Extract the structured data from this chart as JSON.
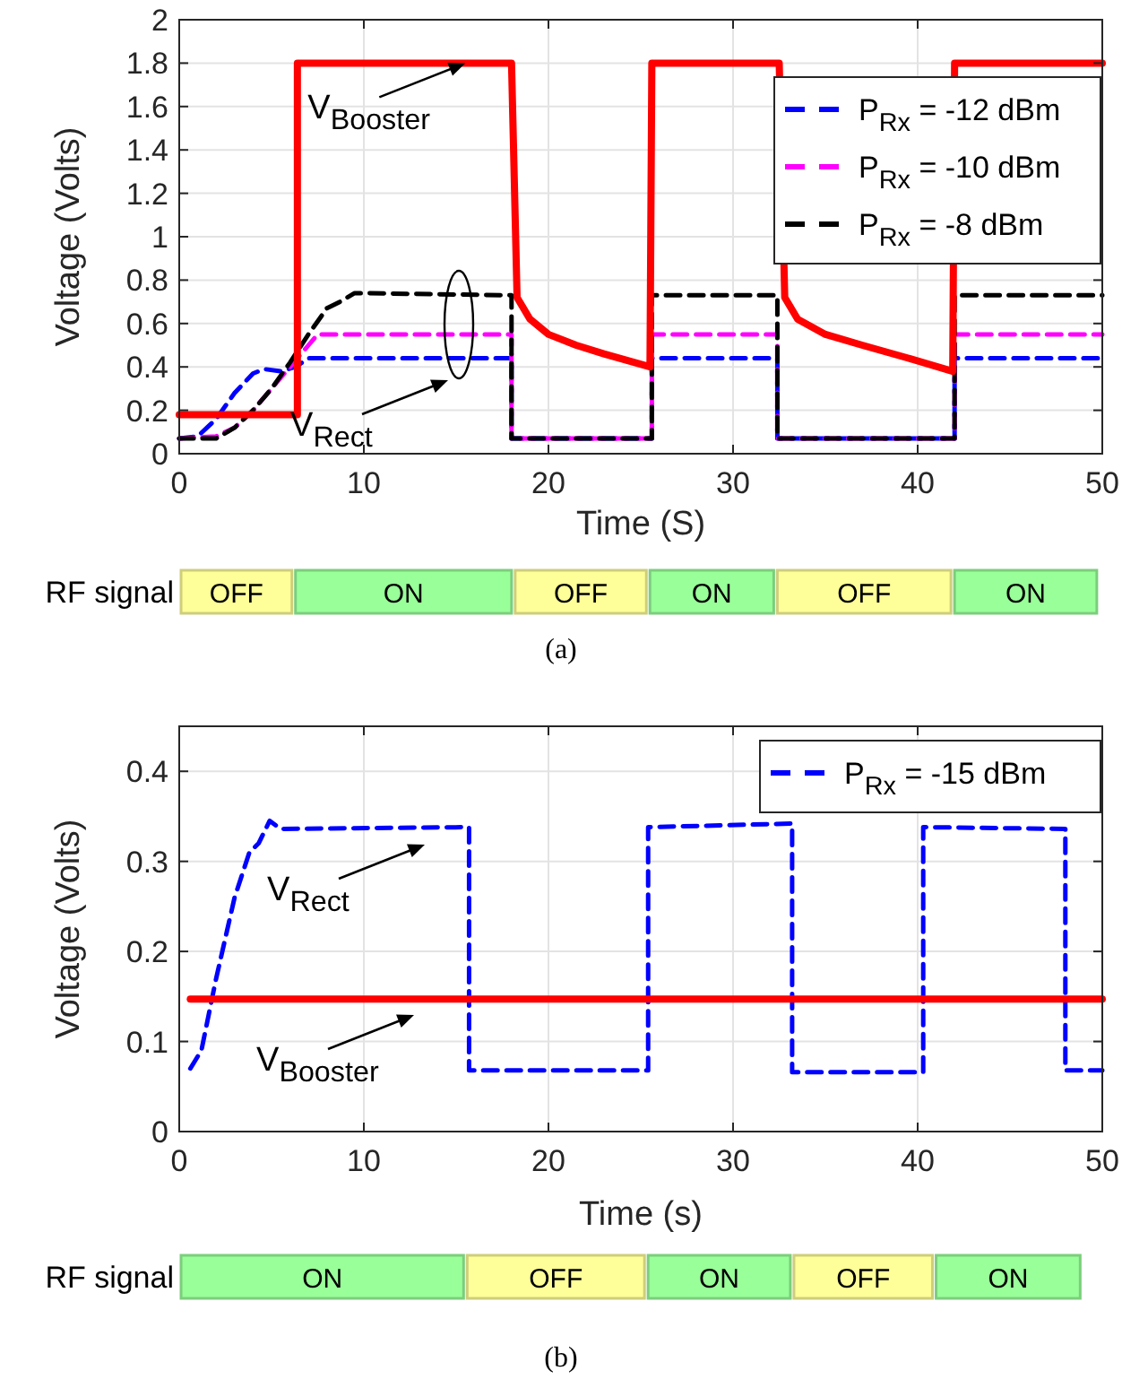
{
  "chart_data": [
    {
      "type": "line",
      "xlabel": "Time (S)",
      "ylabel": "Voltage (Volts)",
      "xlim": [
        0,
        50
      ],
      "xticks": [
        0,
        10,
        20,
        30,
        40,
        50
      ],
      "ylim": [
        0,
        2
      ],
      "yticks": [
        0,
        0.2,
        0.4,
        0.6,
        0.8,
        1,
        1.2,
        1.4,
        1.6,
        1.8,
        2
      ],
      "grid": true,
      "legend": "top right",
      "marker": "none",
      "series": [
        {
          "name": "P$_{Rx}$ = -12 dBm",
          "color": "#0000ff",
          "line_style": "dashed",
          "x": [
            0,
            1,
            2,
            3,
            4,
            4.6,
            5.5,
            6.3,
            7,
            18,
            18,
            25.6,
            25.6,
            32.4,
            32.4,
            42,
            42,
            50
          ],
          "values": [
            0.07,
            0.08,
            0.16,
            0.28,
            0.37,
            0.39,
            0.38,
            0.4,
            0.44,
            0.44,
            0.07,
            0.07,
            0.44,
            0.44,
            0.07,
            0.07,
            0.44,
            0.44
          ]
        },
        {
          "name": "P$_{Rx}$ = -10 dBm",
          "color": "#ff00ff",
          "line_style": "dashed",
          "x": [
            0,
            2,
            3,
            4,
            5,
            6,
            7,
            7.5,
            18,
            18,
            25.6,
            25.6,
            32.4,
            32.4,
            42,
            42,
            50
          ],
          "values": [
            0.07,
            0.08,
            0.12,
            0.2,
            0.3,
            0.4,
            0.5,
            0.55,
            0.55,
            0.07,
            0.07,
            0.55,
            0.55,
            0.07,
            0.07,
            0.55,
            0.55
          ]
        },
        {
          "name": "P$_{Rx}$ = -8 dBm",
          "color": "#000000",
          "line_style": "dashed",
          "x": [
            0,
            2,
            3,
            4,
            5,
            6,
            7,
            8,
            8.7,
            9.5,
            10,
            18,
            18,
            25.6,
            25.6,
            32.4,
            32.4,
            42,
            42,
            50
          ],
          "values": [
            0.07,
            0.07,
            0.12,
            0.2,
            0.3,
            0.42,
            0.55,
            0.67,
            0.7,
            0.74,
            0.74,
            0.73,
            0.07,
            0.07,
            0.73,
            0.73,
            0.07,
            0.07,
            0.73,
            0.73
          ]
        },
        {
          "color": "#ff0000",
          "line_style": "solid",
          "x": [
            0,
            6.4,
            6.4,
            18,
            18.3,
            19,
            20,
            21.5,
            23,
            25.5,
            25.6,
            32.5,
            32.8,
            33.5,
            35,
            37,
            39.5,
            41.9,
            42,
            50
          ],
          "values": [
            0.18,
            0.18,
            1.8,
            1.8,
            0.72,
            0.62,
            0.55,
            0.5,
            0.46,
            0.4,
            1.8,
            1.8,
            0.72,
            0.62,
            0.55,
            0.5,
            0.44,
            0.38,
            1.8,
            1.8
          ]
        }
      ],
      "annotations": [
        {
          "text": "V$_{Booster}$",
          "x": 15.5,
          "y": 1.8
        },
        "V$_{Rect}$"
      ]
    },
    {
      "type": "bar",
      "orientation": "horizontal",
      "stacked": true,
      "categories": [
        "RF signal"
      ],
      "xlim": [
        0,
        50
      ],
      "tick_labels": "y",
      "series": [
        {
          "color": "#ffff99",
          "values": [
            6.2
          ],
          "value_labels": [
            "OFF"
          ]
        },
        {
          "color": "#99ff99",
          "values": [
            11.9
          ],
          "value_labels": [
            "ON"
          ]
        },
        {
          "color": "#ffff99",
          "values": [
            7.3
          ],
          "value_labels": [
            "OFF"
          ]
        },
        {
          "color": "#99ff99",
          "values": [
            6.9
          ],
          "value_labels": [
            "ON"
          ]
        },
        {
          "color": "#ffff99",
          "values": [
            9.6
          ],
          "value_labels": [
            "OFF"
          ]
        },
        {
          "color": "#99ff99",
          "values": [
            7.9
          ],
          "value_labels": [
            "ON"
          ]
        }
      ],
      "annotations": [
        "(a)"
      ]
    },
    {
      "type": "line",
      "xlabel": "Time (s)",
      "ylabel": "Voltage (Volts)",
      "xlim": [
        0,
        50
      ],
      "xticks": [
        0,
        10,
        20,
        30,
        40,
        50
      ],
      "ylim": [
        0,
        0.45
      ],
      "yticks": [
        0,
        0.1,
        0.2,
        0.3,
        0.4
      ],
      "grid": true,
      "legend": "top right",
      "marker": "none",
      "series": [
        {
          "name": "P$_{Rx}$ = -15 dBm",
          "color": "#0000ff",
          "line_style": "dashed",
          "x": [
            0.6,
            1.2,
            2,
            3,
            3.8,
            4.3,
            4.9,
            5.5,
            15.7,
            15.7,
            25.4,
            25.4,
            33.2,
            33.2,
            40.3,
            40.3,
            48,
            48,
            50
          ],
          "values": [
            0.07,
            0.09,
            0.17,
            0.26,
            0.31,
            0.32,
            0.345,
            0.336,
            0.338,
            0.068,
            0.068,
            0.338,
            0.342,
            0.066,
            0.066,
            0.338,
            0.336,
            0.068,
            0.068
          ]
        },
        {
          "color": "#ff0000",
          "line_style": "solid",
          "x": [
            0.6,
            50
          ],
          "values": [
            0.147,
            0.147
          ]
        }
      ],
      "annotations": [
        "V$_{Rect}$",
        "V$_{Booster}$"
      ]
    },
    {
      "type": "bar",
      "orientation": "horizontal",
      "stacked": true,
      "categories": [
        "RF signal"
      ],
      "xlim": [
        0,
        50
      ],
      "tick_labels": "y",
      "series": [
        {
          "color": "#99ff99",
          "values": [
            15.5
          ],
          "value_labels": [
            "ON"
          ]
        },
        {
          "color": "#ffff99",
          "values": [
            9.8
          ],
          "value_labels": [
            "OFF"
          ]
        },
        {
          "color": "#99ff99",
          "values": [
            7.9
          ],
          "value_labels": [
            "ON"
          ]
        },
        {
          "color": "#ffff99",
          "values": [
            7.7
          ],
          "value_labels": [
            "OFF"
          ]
        },
        {
          "color": "#99ff99",
          "values": [
            8
          ],
          "value_labels": [
            "ON"
          ]
        }
      ],
      "annotations": [
        "(b)"
      ]
    }
  ]
}
